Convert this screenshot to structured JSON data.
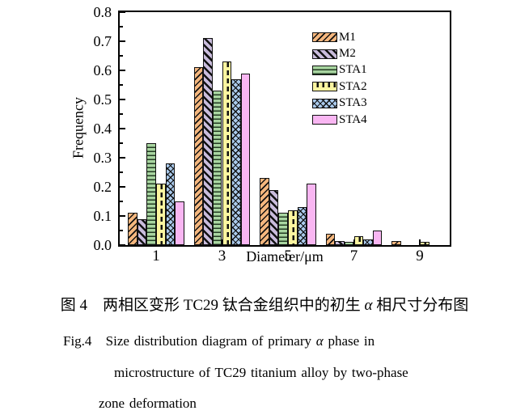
{
  "figure": {
    "caption_zh": {
      "pre": "图 4　两相区变形 TC29 钛合金组织中的初生 ",
      "alpha": "α",
      "post": " 相尺寸分布图"
    },
    "caption_en1": {
      "pre": "Fig.4   Size distribution diagram of primary ",
      "alpha": "α",
      "post": " phase in"
    },
    "caption_en2": "microstructure of TC29 titanium alloy by two-phase",
    "caption_en3": "zone deformation"
  },
  "chart_data": {
    "type": "bar",
    "title": "",
    "xlabel": "Diameter/μm",
    "ylabel": "Frequency",
    "categories": [
      1,
      3,
      5,
      7,
      9
    ],
    "x_ticks": [
      "1",
      "3",
      "5",
      "7",
      "9"
    ],
    "y_ticks": [
      "0.0",
      "0.1",
      "0.2",
      "0.3",
      "0.4",
      "0.5",
      "0.6",
      "0.7",
      "0.8"
    ],
    "ylim": [
      0,
      0.8
    ],
    "xlim": [
      0,
      10
    ],
    "y_minor_step": 0.05,
    "grid": false,
    "legend_position": "top-right-inside",
    "axis_color": "#000000",
    "hatch_color": "#111111",
    "series": [
      {
        "name": "M1",
        "color": "#F5B77E",
        "pattern": "diag-forward",
        "values": [
          0.11,
          0.61,
          0.23,
          0.04,
          0.015
        ]
      },
      {
        "name": "M2",
        "color": "#C9BCDC",
        "pattern": "diag-back",
        "values": [
          0.09,
          0.71,
          0.19,
          0.015,
          0
        ]
      },
      {
        "name": "STA1",
        "color": "#A8D5A0",
        "pattern": "horizontal",
        "values": [
          0.35,
          0.53,
          0.11,
          0.01,
          0
        ]
      },
      {
        "name": "STA2",
        "color": "#FBF5A0",
        "pattern": "dashed-vertical",
        "values": [
          0.21,
          0.63,
          0.12,
          0.03,
          0.01
        ]
      },
      {
        "name": "STA3",
        "color": "#AACAEC",
        "pattern": "crosshatch",
        "values": [
          0.28,
          0.57,
          0.13,
          0.02,
          0
        ]
      },
      {
        "name": "STA4",
        "color": "#F9B6F2",
        "pattern": "solid",
        "values": [
          0.15,
          0.59,
          0.21,
          0.05,
          0
        ]
      }
    ]
  }
}
